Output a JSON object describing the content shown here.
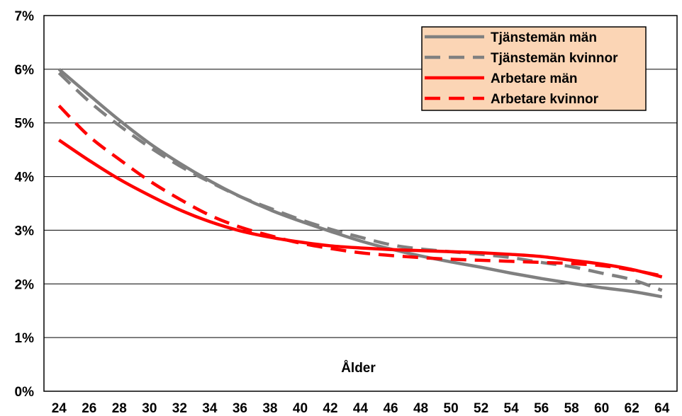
{
  "chart_data": {
    "type": "line",
    "xlabel": "Ålder",
    "ylabel": "",
    "title": "",
    "x": [
      24,
      26,
      28,
      30,
      32,
      34,
      36,
      38,
      40,
      42,
      44,
      46,
      48,
      50,
      52,
      54,
      56,
      58,
      60,
      62,
      64
    ],
    "x_tick_labels": [
      "24",
      "26",
      "28",
      "30",
      "32",
      "34",
      "36",
      "38",
      "40",
      "42",
      "44",
      "46",
      "48",
      "50",
      "52",
      "54",
      "56",
      "58",
      "60",
      "62",
      "64"
    ],
    "ylim": [
      0,
      7
    ],
    "y_ticks": [
      0,
      1,
      2,
      3,
      4,
      5,
      6,
      7
    ],
    "y_tick_labels": [
      "0%",
      "1%",
      "2%",
      "3%",
      "4%",
      "5%",
      "6%",
      "7%"
    ],
    "grid": "horizontal",
    "legend_position": "top-right",
    "legend_background": "#fbd5b5",
    "series": [
      {
        "name": "Tjänstemän män",
        "color": "#808080",
        "dash": "solid",
        "values": [
          6.0,
          5.52,
          5.05,
          4.62,
          4.25,
          3.92,
          3.63,
          3.38,
          3.17,
          2.98,
          2.8,
          2.65,
          2.52,
          2.41,
          2.31,
          2.2,
          2.1,
          2.01,
          1.93,
          1.86,
          1.76
        ]
      },
      {
        "name": "Tjänstemän kvinnor",
        "color": "#808080",
        "dash": "dashed",
        "values": [
          5.93,
          5.4,
          4.95,
          4.55,
          4.2,
          3.9,
          3.63,
          3.41,
          3.2,
          3.02,
          2.87,
          2.73,
          2.65,
          2.6,
          2.55,
          2.49,
          2.4,
          2.32,
          2.2,
          2.08,
          1.88
        ]
      },
      {
        "name": "Arbetare män",
        "color": "#ff0000",
        "dash": "solid",
        "values": [
          4.68,
          4.3,
          3.95,
          3.65,
          3.38,
          3.16,
          2.99,
          2.87,
          2.78,
          2.71,
          2.67,
          2.64,
          2.62,
          2.6,
          2.58,
          2.55,
          2.51,
          2.44,
          2.37,
          2.27,
          2.13
        ]
      },
      {
        "name": "Arbetare kvinnor",
        "color": "#ff0000",
        "dash": "dashed",
        "values": [
          5.32,
          4.75,
          4.32,
          3.92,
          3.58,
          3.28,
          3.06,
          2.9,
          2.76,
          2.66,
          2.58,
          2.53,
          2.49,
          2.46,
          2.44,
          2.42,
          2.4,
          2.38,
          2.34,
          2.26,
          2.15
        ]
      }
    ]
  }
}
